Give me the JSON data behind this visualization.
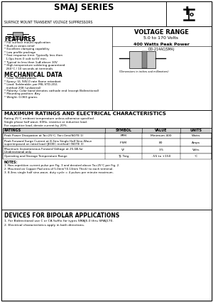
{
  "title": "SMAJ SERIES",
  "subtitle": "SURFACE MOUNT TRANSIENT VOLTAGE SUPPRESSORS",
  "voltage_range_title": "VOLTAGE RANGE",
  "voltage_range": "5.0 to 170 Volts",
  "power": "400 Watts Peak Power",
  "features_title": "FEATURES",
  "features": [
    "* For surface mount application",
    "* Built-in strain relief",
    "* Excellent clamping capability",
    "* Low profile package",
    "* Fast response time: Typically less than",
    "  1.0ps from 0 volt to 6V min.",
    "* Typical to less than 1uA above 10V",
    "* High temperature soldering guaranteed",
    "  260°C / 10 seconds at terminals"
  ],
  "mech_title": "MECHANICAL DATA",
  "mech_data": [
    "* Case: Molded plastic",
    "* Epoxy: UL 94V-0 rate flame retardant",
    "* Lead: Solderable, per MIL-STD-202,",
    "  method 208 (unilateral)",
    "* Polarity: Color band denotes cathode end (except Bidirectional)",
    "* Mounting position: Any",
    "* Weight: 0.060 grams"
  ],
  "pkg_label": "DO-214AC(SMA)",
  "max_ratings_title": "MAXIMUM RATINGS AND ELECTRICAL CHARACTERISTICS",
  "ratings_note1": "Rating 25°C ambient temperature unless otherwise specified.",
  "ratings_note2": "Single phase half wave, 60Hz, resistive or inductive load.",
  "ratings_note3": "For capacitive load, derate current by 20%.",
  "table_headers": [
    "RATINGS",
    "SYMBOL",
    "VALUE",
    "UNITS"
  ],
  "table_row0_desc": "Peak Power Dissipation at Ta=25°C, Tar=1ms(NOTE 1)",
  "table_row0_sym": "PPM",
  "table_row0_val": "Minimum 400",
  "table_row0_unit": "Watts",
  "table_row1_desc1": "Peak Forward Surge Current at 8.3ms Single Half Sine-Wave",
  "table_row1_desc2": "superimposed on rated load (JEDEC method) (NOTE 3)",
  "table_row1_sym": "IFSM",
  "table_row1_val": "80",
  "table_row1_unit": "Amps",
  "table_row2_desc1": "Maximum Instantaneous Forward Voltage at 25.0A for",
  "table_row2_desc2": "Unidirectional only",
  "table_row2_sym": "VF",
  "table_row2_val": "3.5",
  "table_row2_unit": "Volts",
  "table_row3_desc": "Operating and Storage Temperature Range",
  "table_row3_sym": "TJ, Tstg",
  "table_row3_val": "-55 to +150",
  "table_row3_unit": "°C",
  "notes_title": "NOTES:",
  "note1": "1. Non-repetition current pulse per Fig. 3 and derated above Ta=25°C per Fig. 2.",
  "note2": "2. Mounted on Copper Pad area of 5.0mm²(0.13mm Thick) to each terminal.",
  "note3": "3. 8.3ms single half sine-wave, duty cycle = 4 pulses per minute maximum.",
  "bipolar_title": "DEVICES FOR BIPOLAR APPLICATIONS",
  "bipolar1": "1. For Bidirectional use C or CA Suffix for types SMAJ5.0 thru SMAJ170.",
  "bipolar2": "2. Electrical characteristics apply in both directions.",
  "bg_color": "#ffffff"
}
